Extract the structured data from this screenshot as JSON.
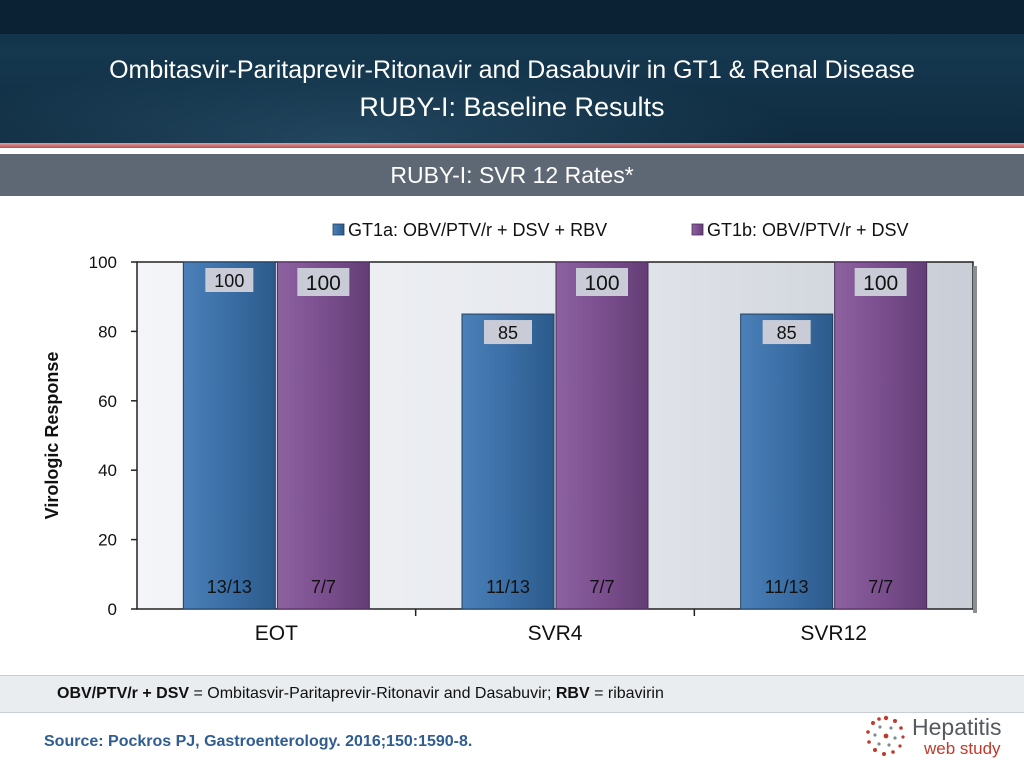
{
  "header": {
    "title_line1": "Ombitasvir-Paritaprevir-Ritonavir and Dasabuvir in GT1 & Renal Disease",
    "title_line2": "RUBY-I: Baseline Results"
  },
  "subtitle": "RUBY-I: SVR 12 Rates*",
  "footnote": {
    "term1": "OBV/PTV/r + DSV",
    "def1": " = Ombitasvir-Paritaprevir-Ritonavir and Dasabuvir; ",
    "term2": "RBV",
    "def2": " = ribavirin"
  },
  "source": "Source: Pockros PJ, Gastroenterology. 2016;150:1590-8.",
  "logo": {
    "line1": "Hepatitis",
    "line2": "web study"
  },
  "colors": {
    "gt1a": "#3a6ea5",
    "gt1b": "#7b4f8e",
    "plot_bg": "#e6e9ee",
    "label_box": "#c9ccd6"
  },
  "chart_data": {
    "type": "bar",
    "categories": [
      "EOT",
      "SVR4",
      "SVR12"
    ],
    "series": [
      {
        "name": "GT1a: OBV/PTV/r + DSV + RBV",
        "values": [
          100,
          85,
          85
        ],
        "value_labels": [
          "100",
          "85",
          "85"
        ],
        "counts": [
          "13/13",
          "11/13",
          "11/13"
        ]
      },
      {
        "name": "GT1b: OBV/PTV/r + DSV",
        "values": [
          100,
          100,
          100
        ],
        "value_labels": [
          "100",
          "100",
          "100"
        ],
        "counts": [
          "7/7",
          "7/7",
          "7/7"
        ]
      }
    ],
    "ylabel": "Virologic Response",
    "xlabel": "",
    "ylim": [
      0,
      100
    ],
    "yticks": [
      0,
      20,
      40,
      60,
      80,
      100
    ],
    "legend_position": "top-right",
    "grid": false
  }
}
